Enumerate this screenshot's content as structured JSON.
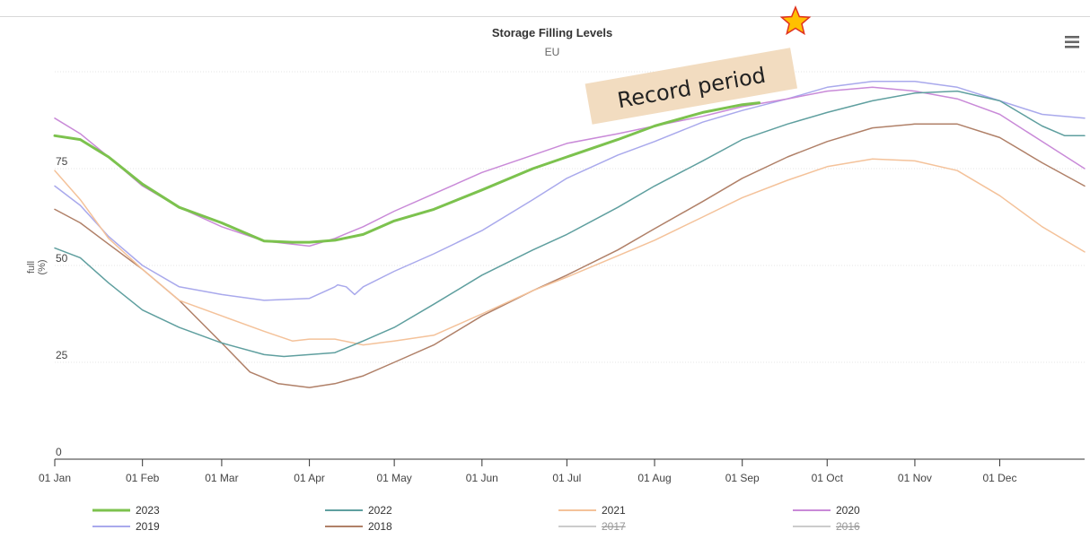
{
  "chart_data": {
    "type": "line",
    "title": "Storage Filling Levels",
    "subtitle": "EU",
    "ylabel_line1": "full",
    "ylabel_line2": "(%)",
    "ylim": [
      0,
      100
    ],
    "yticks": [
      {
        "value": 0,
        "label": "0"
      },
      {
        "value": 25,
        "label": "25"
      },
      {
        "value": 50,
        "label": "50"
      },
      {
        "value": 75,
        "label": "75"
      }
    ],
    "xlim": [
      1,
      365
    ],
    "xticks": [
      {
        "day": 1,
        "label": "01 Jan"
      },
      {
        "day": 32,
        "label": "01 Feb"
      },
      {
        "day": 60,
        "label": "01 Mar"
      },
      {
        "day": 91,
        "label": "01 Apr"
      },
      {
        "day": 121,
        "label": "01 May"
      },
      {
        "day": 152,
        "label": "01 Jun"
      },
      {
        "day": 182,
        "label": "01 Jul"
      },
      {
        "day": 213,
        "label": "01 Aug"
      },
      {
        "day": 244,
        "label": "01 Sep"
      },
      {
        "day": 274,
        "label": "01 Oct"
      },
      {
        "day": 305,
        "label": "01 Nov"
      },
      {
        "day": 335,
        "label": "01 Dec"
      }
    ],
    "grid": true,
    "legend_position": "bottom",
    "series": [
      {
        "name": "2023",
        "color": "#7cc24e",
        "width": 3,
        "visible": true,
        "x": [
          1,
          10,
          20,
          32,
          45,
          60,
          75,
          85,
          91,
          100,
          110,
          121,
          135,
          152,
          170,
          182,
          200,
          213,
          230,
          244,
          250
        ],
        "y": [
          83.5,
          82.5,
          78,
          71,
          65,
          61,
          56.3,
          56,
          56,
          56.5,
          58,
          61.5,
          64.5,
          69.5,
          75,
          78,
          82.5,
          86,
          89.5,
          91.5,
          92
        ]
      },
      {
        "name": "2022",
        "color": "#5f9f9f",
        "width": 1.5,
        "visible": true,
        "x": [
          1,
          10,
          20,
          32,
          45,
          60,
          75,
          82,
          91,
          100,
          110,
          121,
          135,
          152,
          170,
          182,
          200,
          213,
          230,
          244,
          260,
          274,
          290,
          305,
          320,
          335,
          350,
          358,
          365
        ],
        "y": [
          54.5,
          52,
          45.5,
          38.5,
          34,
          30,
          27,
          26.5,
          27,
          27.5,
          30.5,
          34,
          40,
          47.5,
          54,
          58,
          65,
          70.5,
          77,
          82.5,
          86.5,
          89.5,
          92.5,
          94.5,
          95,
          92.5,
          86,
          83.5,
          83.5
        ]
      },
      {
        "name": "2021",
        "color": "#f4c29a",
        "width": 1.5,
        "visible": true,
        "x": [
          1,
          10,
          20,
          32,
          45,
          60,
          75,
          85,
          91,
          100,
          110,
          121,
          135,
          152,
          170,
          182,
          200,
          213,
          230,
          244,
          260,
          274,
          290,
          305,
          320,
          335,
          350,
          365
        ],
        "y": [
          74.5,
          67,
          57,
          49,
          41,
          37,
          33,
          30.5,
          31,
          31,
          29.5,
          30.5,
          32,
          37.5,
          43.5,
          47,
          52.5,
          56.5,
          62.5,
          67.5,
          72,
          75.5,
          77.5,
          77,
          74.5,
          68,
          60,
          53.5
        ]
      },
      {
        "name": "2020",
        "color": "#c98ad8",
        "width": 1.5,
        "visible": true,
        "x": [
          1,
          10,
          20,
          32,
          45,
          60,
          75,
          85,
          91,
          100,
          110,
          121,
          135,
          152,
          170,
          182,
          200,
          213,
          230,
          244,
          260,
          274,
          290,
          305,
          320,
          335,
          350,
          365
        ],
        "y": [
          88,
          84,
          78,
          70.5,
          65,
          60,
          56.3,
          55.5,
          55,
          57,
          60,
          64,
          68.5,
          74,
          78.5,
          81.5,
          84,
          86,
          88.5,
          91,
          93,
          95,
          96,
          95,
          93,
          89,
          82,
          75
        ]
      },
      {
        "name": "2019",
        "color": "#a9a9ec",
        "width": 1.5,
        "visible": true,
        "x": [
          1,
          10,
          20,
          32,
          45,
          60,
          75,
          91,
          100,
          101,
          104,
          107,
          110,
          121,
          135,
          152,
          170,
          182,
          200,
          213,
          230,
          244,
          260,
          274,
          290,
          305,
          320,
          335,
          350,
          365
        ],
        "y": [
          70.5,
          65.5,
          57.5,
          50,
          44.5,
          42.5,
          41,
          41.5,
          44.5,
          45,
          44.5,
          42.5,
          44.5,
          48.5,
          53,
          59,
          67,
          72.5,
          78.5,
          82,
          87,
          90,
          93,
          96,
          97.5,
          97.5,
          96,
          92.5,
          89,
          88
        ]
      },
      {
        "name": "2018",
        "color": "#b08068",
        "width": 1.5,
        "visible": true,
        "x": [
          1,
          10,
          20,
          32,
          45,
          60,
          70,
          80,
          91,
          100,
          110,
          121,
          135,
          152,
          170,
          182,
          200,
          213,
          230,
          244,
          260,
          274,
          290,
          305,
          320,
          335,
          350,
          365
        ],
        "y": [
          64.5,
          61,
          55.5,
          49,
          41,
          30,
          22.5,
          19.5,
          18.5,
          19.5,
          21.5,
          25,
          29.5,
          37,
          43.5,
          47.5,
          54,
          59.5,
          66.5,
          72.5,
          78,
          82,
          85.5,
          86.5,
          86.5,
          83,
          76.5,
          70.5
        ]
      },
      {
        "name": "2017",
        "color": "#aaaaaa",
        "width": 1.5,
        "visible": false,
        "x": [],
        "y": []
      },
      {
        "name": "2016",
        "color": "#aaaaaa",
        "width": 1.5,
        "visible": false,
        "x": [],
        "y": []
      }
    ],
    "annotations": [
      {
        "text": "Record period",
        "marker": "star-icon",
        "fill": "#f2dcc0",
        "star_color": "#ffc000",
        "star_outline": "#e0301e"
      }
    ]
  },
  "menu_icon": "hamburger-icon"
}
